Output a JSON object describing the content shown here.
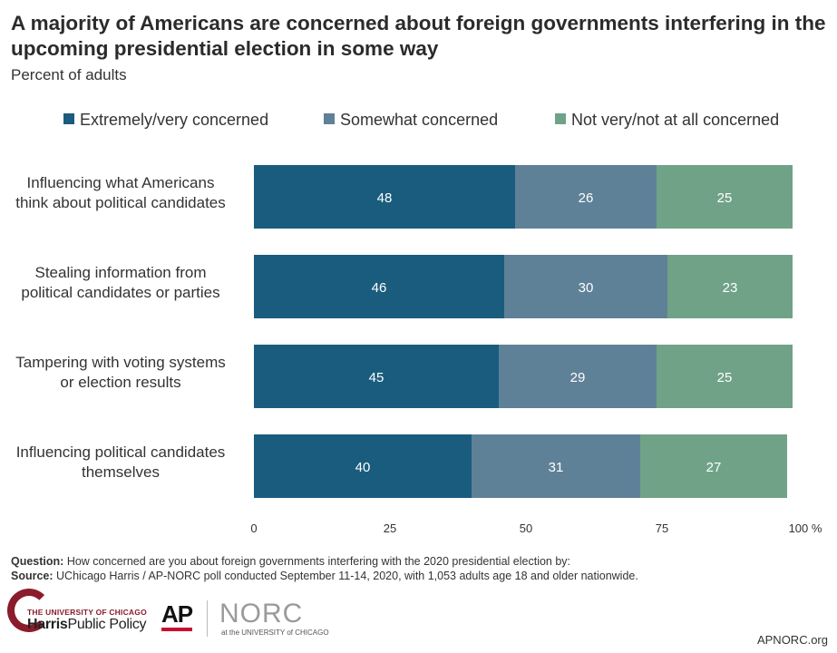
{
  "chart_data": {
    "type": "bar",
    "orientation": "horizontal",
    "stacked": true,
    "title": "A majority of Americans are concerned about foreign governments interfering in the upcoming presidential election in some way",
    "subtitle": "Percent of adults",
    "categories": [
      "Influencing what Americans think about political candidates",
      "Stealing information from political candidates or parties",
      "Tampering with voting systems or election results",
      "Influencing political candidates themselves"
    ],
    "category_lines": [
      [
        "Influencing what Americans",
        "think about political candidates"
      ],
      [
        "Stealing information from",
        "political candidates or parties"
      ],
      [
        "Tampering with voting systems",
        "or election results"
      ],
      [
        "Influencing political candidates",
        "themselves"
      ]
    ],
    "series": [
      {
        "name": "Extremely/very concerned",
        "color": "#1a5c7e",
        "values": [
          48,
          46,
          45,
          40
        ]
      },
      {
        "name": "Somewhat concerned",
        "color": "#5f8197",
        "values": [
          26,
          30,
          29,
          31
        ]
      },
      {
        "name": "Not very/not at all concerned",
        "color": "#70a288",
        "values": [
          25,
          23,
          25,
          27
        ]
      }
    ],
    "xlim": [
      0,
      100
    ],
    "xticks": [
      "0",
      "25",
      "50",
      "75",
      "100 %"
    ],
    "xtick_values": [
      0,
      25,
      50,
      75,
      100
    ],
    "grid": false,
    "legend_position": "top"
  },
  "footer": {
    "question_label": "Question:",
    "question_text": "How concerned are you about foreign governments interfering with the 2020 presidential election by:",
    "source_label": "Source:",
    "source_text": "UChicago Harris / AP-NORC poll conducted September 11-14, 2020, with 1,053 adults age 18 and older nationwide."
  },
  "logos": {
    "uchicago_top": "THE UNIVERSITY OF CHICAGO",
    "uchicago_bold": "Harris",
    "uchicago_rest": "Public Policy",
    "ap": "AP",
    "norc": "NORC",
    "norc_sub": "at the UNIVERSITY of CHICAGO"
  },
  "site": "APNORC.org"
}
